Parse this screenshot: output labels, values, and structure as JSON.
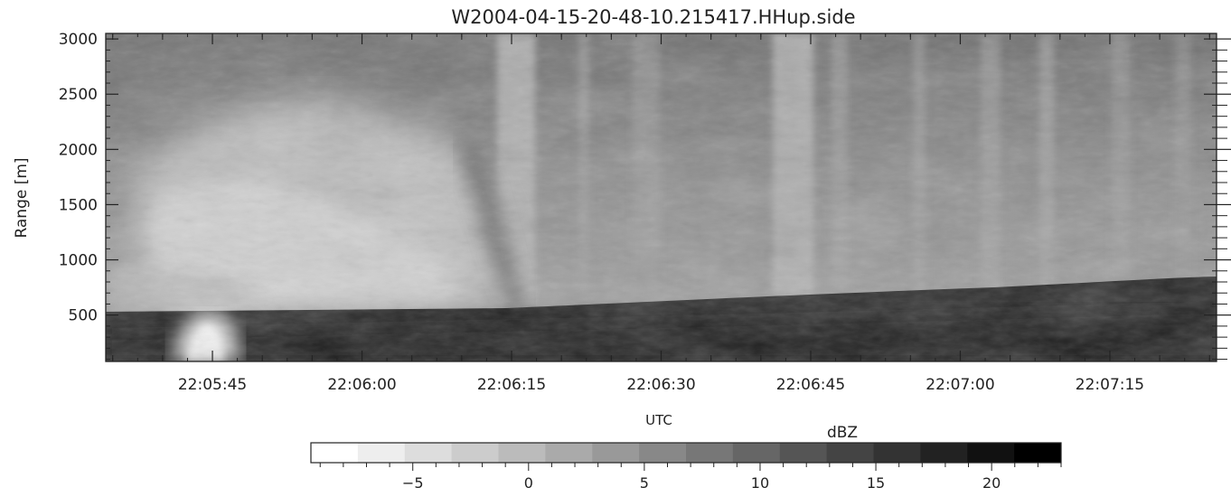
{
  "chart_data": {
    "type": "heatmap",
    "title": "W2004-04-15-20-48-10.215417.HHup.side",
    "xlabel": "UTC",
    "ylabel": "Range [m]",
    "x_ticks": [
      "22:05:45",
      "22:06:00",
      "22:06:15",
      "22:06:30",
      "22:06:45",
      "22:07:00",
      "22:07:15"
    ],
    "x_tick_seconds": [
      45,
      60,
      75,
      90,
      105,
      120,
      135
    ],
    "x_range_seconds": [
      34.3,
      145.7
    ],
    "y_ticks": [
      500,
      1000,
      1500,
      2000,
      2500,
      3000
    ],
    "ylim": [
      80,
      3050
    ],
    "colormap": "grayscale, white (low) to black (high)",
    "colorbar": {
      "label": "dBZ",
      "ticks": [
        -5,
        0,
        5,
        10,
        15,
        20
      ],
      "range": [
        -9.4,
        23
      ],
      "bins": 16
    },
    "colors": {
      "axis": "#222222",
      "background": "#ffffff"
    }
  }
}
